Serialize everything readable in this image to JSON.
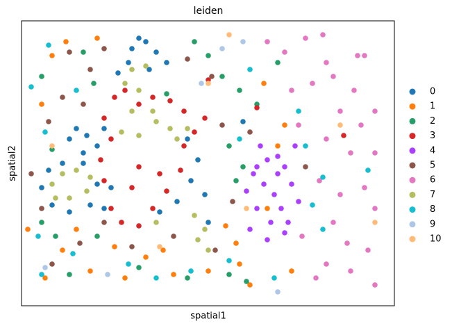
{
  "chart_data": {
    "type": "scatter",
    "title": "leiden",
    "x_label": "spatial1",
    "y_label": "spatial2",
    "xlim": [
      0,
      537
    ],
    "ylim": [
      0,
      410
    ],
    "legend": "right",
    "series": [
      {
        "name": "0",
        "color": "#1f77b4",
        "x": [
          169,
          179,
          159,
          194,
          154,
          209,
          139,
          184,
          79,
          94,
          69,
          109,
          89,
          119,
          39,
          29,
          44,
          69,
          99,
          109,
          89,
          59,
          239,
          254,
          244,
          224,
          199,
          264,
          269,
          129,
          119,
          319
        ],
        "y": [
          385,
          380,
          370,
          365,
          350,
          350,
          335,
          340,
          255,
          245,
          240,
          230,
          220,
          255,
          195,
          170,
          145,
          135,
          145,
          175,
          205,
          205,
          240,
          210,
          180,
          150,
          135,
          160,
          120,
          170,
          140,
          265
        ]
      },
      {
        "name": "1",
        "color": "#ff7f0e",
        "x": [
          44,
          64,
          109,
          29,
          9,
          59,
          99,
          149,
          179,
          219,
          269,
          309,
          314,
          354,
          379,
          369,
          349,
          389,
          134,
          204,
          34,
          79,
          294,
          329
        ],
        "y": [
          360,
          380,
          385,
          290,
          110,
          80,
          50,
          40,
          70,
          45,
          50,
          90,
          60,
          140,
          260,
          230,
          320,
          50,
          85,
          80,
          40,
          110,
          115,
          30
        ]
      },
      {
        "name": "2",
        "color": "#279e68",
        "x": [
          29,
          89,
          249,
          289,
          314,
          299,
          309,
          29,
          49,
          109,
          169,
          239,
          299,
          339,
          319,
          44,
          104,
          269,
          369,
          324,
          69,
          209
        ],
        "y": [
          330,
          365,
          380,
          330,
          310,
          230,
          180,
          120,
          100,
          100,
          55,
          40,
          45,
          290,
          200,
          225,
          320,
          360,
          350,
          35,
          45,
          305
        ]
      },
      {
        "name": "3",
        "color": "#d62728",
        "x": [
          134,
          149,
          169,
          189,
          214,
          234,
          119,
          129,
          114,
          119,
          129,
          144,
          169,
          189,
          209,
          229,
          234,
          249,
          169,
          159,
          199,
          264,
          269,
          464,
          339
        ],
        "y": [
          300,
          310,
          290,
          300,
          295,
          280,
          270,
          240,
          210,
          180,
          140,
          120,
          115,
          140,
          165,
          195,
          230,
          250,
          200,
          170,
          190,
          270,
          325,
          245,
          285
        ]
      },
      {
        "name": "4",
        "color": "#aa40fc",
        "x": [
          339,
          354,
          369,
          349,
          364,
          379,
          389,
          374,
          359,
          339,
          329,
          354,
          384,
          394,
          399,
          324,
          344,
          369,
          379,
          334
        ],
        "y": [
          200,
          210,
          190,
          175,
          160,
          200,
          175,
          140,
          120,
          140,
          110,
          95,
          120,
          230,
          150,
          165,
          230,
          215,
          105,
          190
        ]
      },
      {
        "name": "5",
        "color": "#8c564b",
        "x": [
          69,
          119,
          99,
          59,
          39,
          14,
          29,
          84,
          119,
          159,
          219,
          279,
          289,
          304,
          89,
          239,
          274,
          44,
          329,
          409
        ],
        "y": [
          365,
          370,
          340,
          300,
          265,
          190,
          140,
          90,
          120,
          85,
          100,
          80,
          260,
          150,
          290,
          355,
          330,
          60,
          250,
          200
        ]
      },
      {
        "name": "6",
        "color": "#e377c2",
        "x": [
          354,
          379,
          409,
          434,
          439,
          419,
          449,
          484,
          494,
          479,
          509,
          459,
          489,
          439,
          474,
          509,
          429,
          459,
          494,
          509,
          449,
          469,
          499,
          439,
          474,
          509,
          424,
          404,
          399,
          389
        ],
        "y": [
          380,
          365,
          385,
          390,
          350,
          320,
          330,
          360,
          360,
          310,
          280,
          280,
          260,
          240,
          220,
          220,
          180,
          160,
          170,
          140,
          120,
          90,
          80,
          60,
          50,
          30,
          40,
          100,
          260,
          310
        ]
      },
      {
        "name": "7",
        "color": "#b5bd61",
        "x": [
          44,
          59,
          79,
          99,
          94,
          69,
          49,
          159,
          179,
          149,
          169,
          159,
          144,
          169,
          194,
          214,
          239,
          224,
          189,
          249,
          264,
          269,
          254,
          194
        ],
        "y": [
          175,
          190,
          195,
          185,
          165,
          155,
          155,
          340,
          345,
          320,
          310,
          280,
          250,
          245,
          265,
          255,
          255,
          240,
          280,
          130,
          110,
          80,
          95,
          120
        ]
      },
      {
        "name": "8",
        "color": "#17becf",
        "x": [
          14,
          34,
          24,
          79,
          74,
          154,
          244,
          299,
          329,
          314,
          399,
          409,
          434,
          434,
          499,
          419,
          29,
          194,
          364,
          39
        ],
        "y": [
          315,
          250,
          100,
          310,
          75,
          60,
          50,
          65,
          340,
          240,
          280,
          230,
          185,
          110,
          195,
          145,
          45,
          40,
          40,
          375
        ]
      },
      {
        "name": "9",
        "color": "#aec7e8",
        "x": [
          289,
          259,
          34,
          124,
          369,
          319
        ],
        "y": [
          370,
          320,
          55,
          45,
          20,
          380
        ]
      },
      {
        "name": "10",
        "color": "#ffbb78",
        "x": [
          299,
          459,
          44,
          324,
          199,
          509,
          269
        ],
        "y": [
          390,
          260,
          230,
          140,
          85,
          120,
          320
        ]
      }
    ]
  }
}
